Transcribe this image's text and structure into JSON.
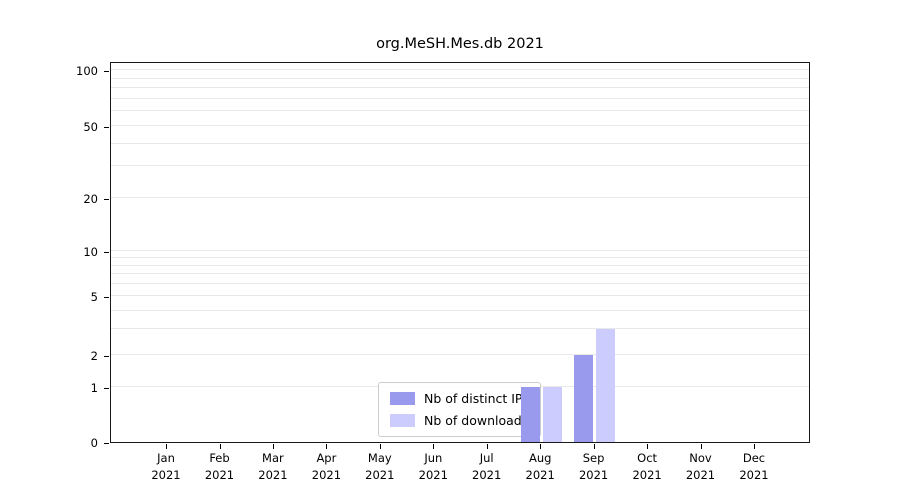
{
  "chart_data": {
    "type": "bar",
    "title": "org.MeSH.Mes.db 2021",
    "categories": [
      "Jan 2021",
      "Feb 2021",
      "Mar 2021",
      "Apr 2021",
      "May 2021",
      "Jun 2021",
      "Jul 2021",
      "Aug 2021",
      "Sep 2021",
      "Oct 2021",
      "Nov 2021",
      "Dec 2021"
    ],
    "x_months": [
      "Jan",
      "Feb",
      "Mar",
      "Apr",
      "May",
      "Jun",
      "Jul",
      "Aug",
      "Sep",
      "Oct",
      "Nov",
      "Dec"
    ],
    "x_year": "2021",
    "series": [
      {
        "name": "Nb of distinct IPs",
        "color": "#9999ee",
        "values": [
          0,
          0,
          0,
          0,
          0,
          0,
          0,
          1,
          2,
          0,
          0,
          0
        ]
      },
      {
        "name": "Nb of downloads",
        "color": "#ccccff",
        "values": [
          0,
          0,
          0,
          0,
          0,
          0,
          0,
          1,
          3,
          0,
          0,
          0
        ]
      }
    ],
    "yticks": [
      0,
      1,
      2,
      5,
      10,
      20,
      50,
      100
    ],
    "yscale": "log-with-zero",
    "ylim": [
      0,
      110
    ],
    "grid": "horizontal-minor",
    "legend": {
      "position": "inside-bottom-center",
      "labels": [
        "Nb of distinct IPs",
        "Nb of downloads"
      ]
    }
  },
  "colors": {
    "bar_distinct_ips": "#9999ee",
    "bar_downloads": "#ccccff",
    "gridline": "#e8e8e8",
    "axis": "#1a1a1a",
    "background": "#ffffff"
  }
}
